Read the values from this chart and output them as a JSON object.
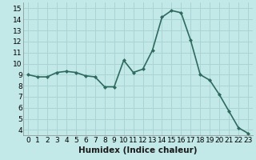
{
  "x": [
    0,
    1,
    2,
    3,
    4,
    5,
    6,
    7,
    8,
    9,
    10,
    11,
    12,
    13,
    14,
    15,
    16,
    17,
    18,
    19,
    20,
    21,
    22,
    23
  ],
  "y": [
    9.0,
    8.8,
    8.8,
    9.2,
    9.3,
    9.2,
    8.9,
    8.8,
    7.9,
    7.9,
    10.3,
    9.2,
    9.5,
    11.2,
    14.2,
    14.8,
    14.6,
    12.1,
    9.0,
    8.5,
    7.2,
    5.7,
    4.2,
    3.7
  ],
  "line_color": "#2e6b5e",
  "marker": "D",
  "marker_size": 2.0,
  "bg_color": "#c2e8e8",
  "grid_color": "#aad4d4",
  "xlabel": "Humidex (Indice chaleur)",
  "xlim": [
    -0.5,
    23.5
  ],
  "ylim": [
    3.5,
    15.5
  ],
  "yticks": [
    4,
    5,
    6,
    7,
    8,
    9,
    10,
    11,
    12,
    13,
    14,
    15
  ],
  "xticks": [
    0,
    1,
    2,
    3,
    4,
    5,
    6,
    7,
    8,
    9,
    10,
    11,
    12,
    13,
    14,
    15,
    16,
    17,
    18,
    19,
    20,
    21,
    22,
    23
  ],
  "xlabel_fontsize": 7.5,
  "tick_fontsize": 6.5,
  "line_width": 1.2
}
